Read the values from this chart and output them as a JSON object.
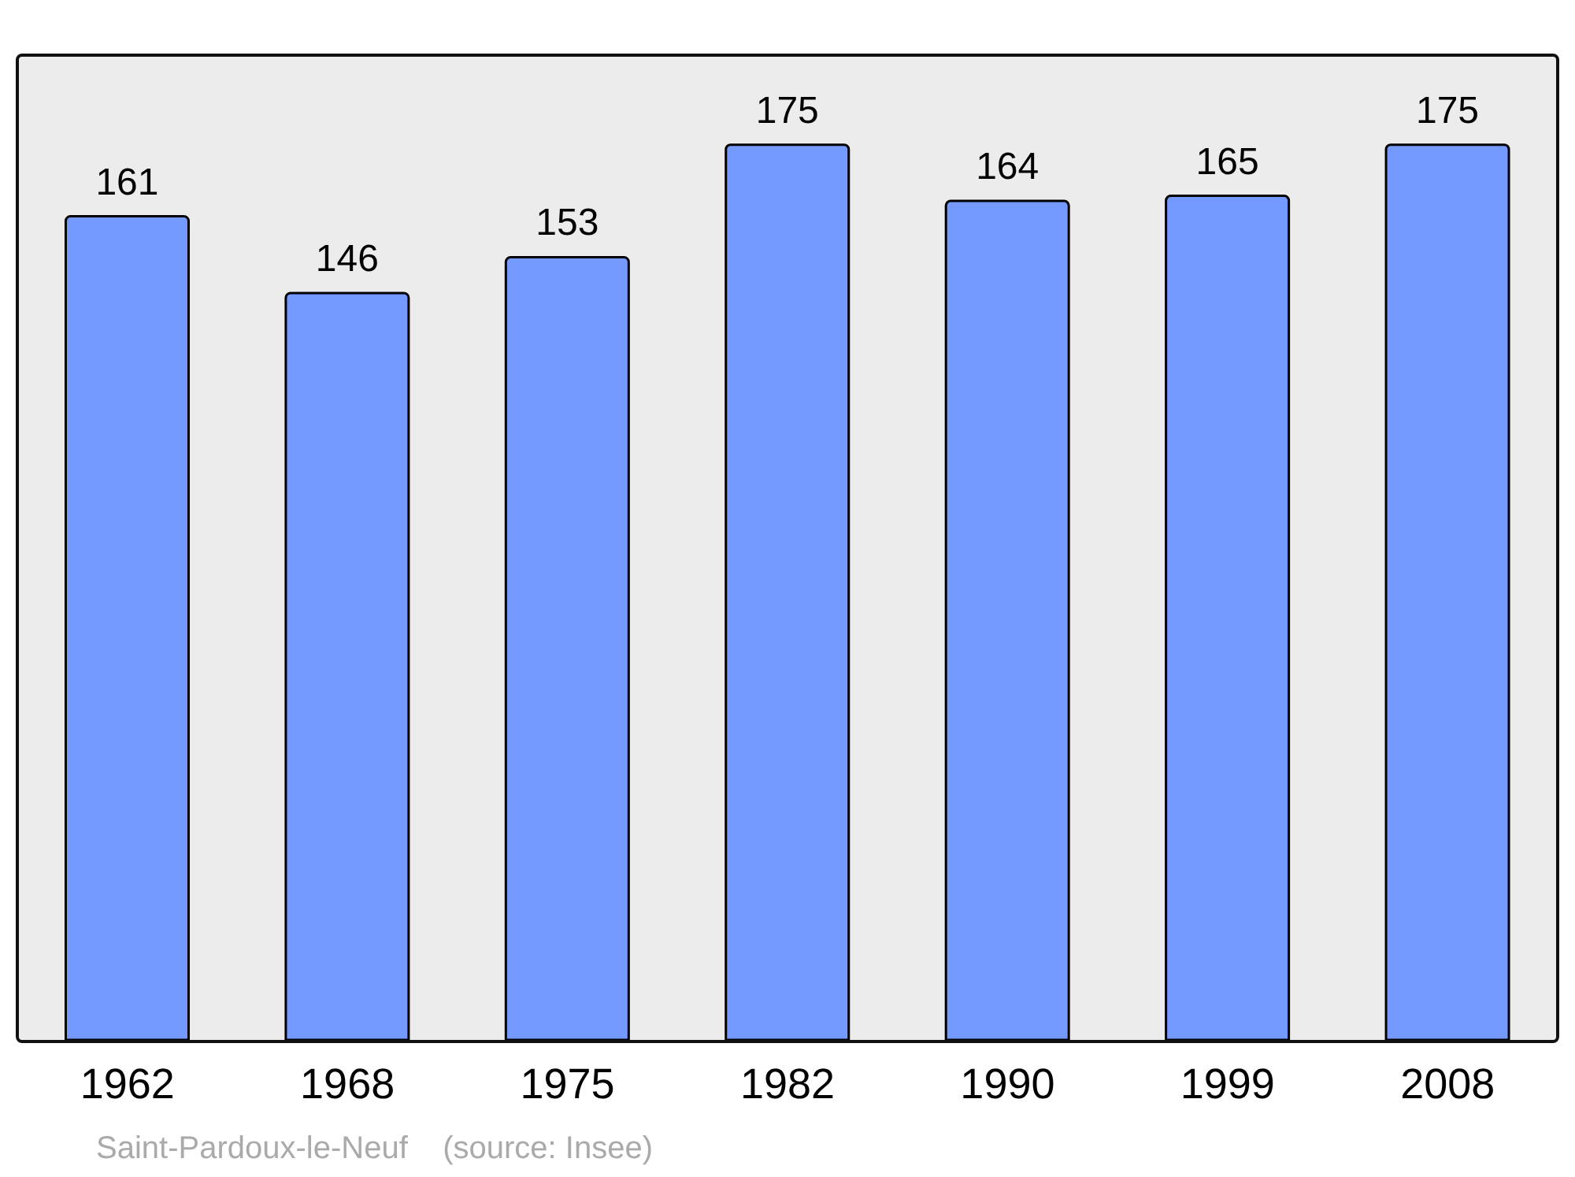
{
  "chart_data": {
    "type": "bar",
    "categories": [
      "1962",
      "1968",
      "1975",
      "1982",
      "1990",
      "1999",
      "2008"
    ],
    "values": [
      161,
      146,
      153,
      175,
      164,
      165,
      175
    ],
    "color": "#7499ff",
    "data_labels": true,
    "annotations": [
      "Saint-Pardoux-le-Neuf    (source: Insee)"
    ]
  }
}
